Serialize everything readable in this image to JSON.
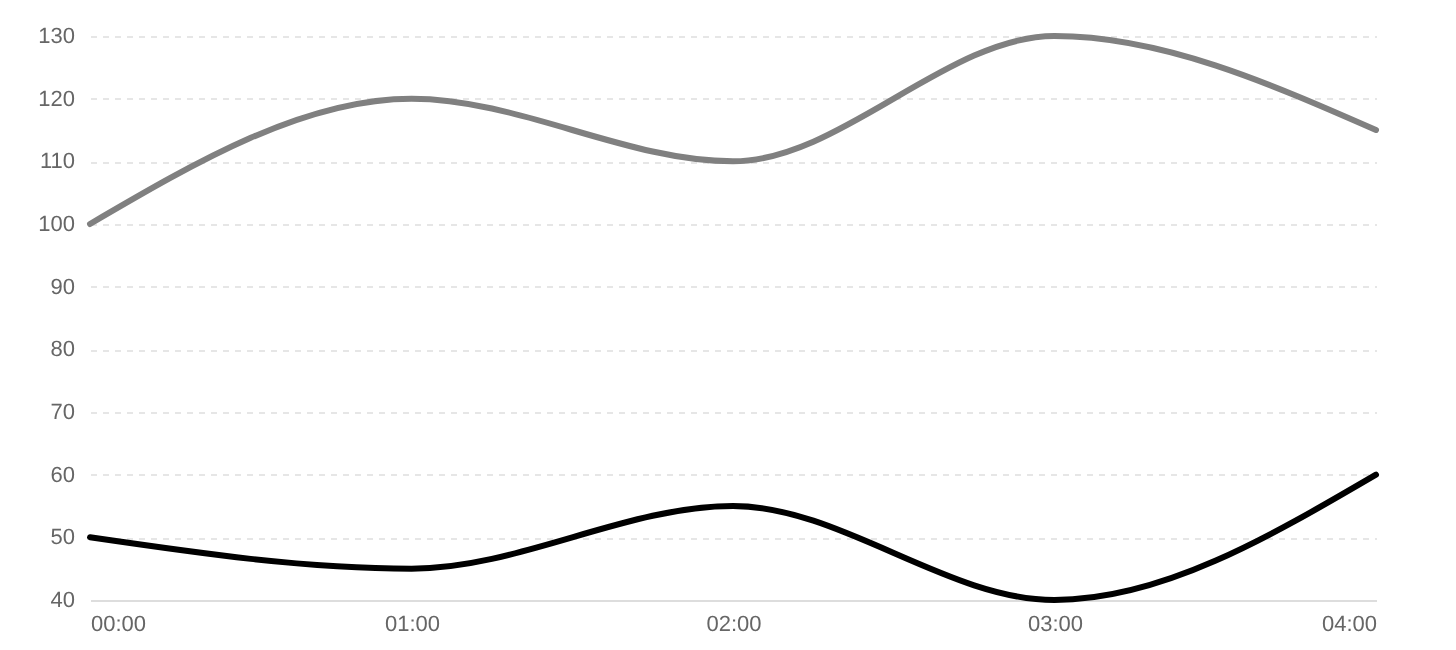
{
  "chart_data": {
    "type": "line",
    "x": [
      0,
      1,
      2,
      3,
      4
    ],
    "series": [
      {
        "color": "#808080",
        "values": [
          100,
          120,
          110,
          130,
          115
        ]
      },
      {
        "color": "#000000",
        "values": [
          50,
          45,
          55,
          40,
          60
        ]
      }
    ],
    "xlim": [
      0,
      4
    ],
    "xticks": [
      {
        "value": 0,
        "label": "00:00"
      },
      {
        "value": 1,
        "label": "01:00"
      },
      {
        "value": 2,
        "label": "02:00"
      },
      {
        "value": 3,
        "label": "03:00"
      },
      {
        "value": 4,
        "label": "04:00"
      }
    ],
    "ylim": [
      40,
      130
    ],
    "yticks": [
      40,
      50,
      60,
      70,
      80,
      90,
      100,
      110,
      120,
      130
    ],
    "grid": "y",
    "marker": "none",
    "line_style": "solid",
    "legend": false
  }
}
